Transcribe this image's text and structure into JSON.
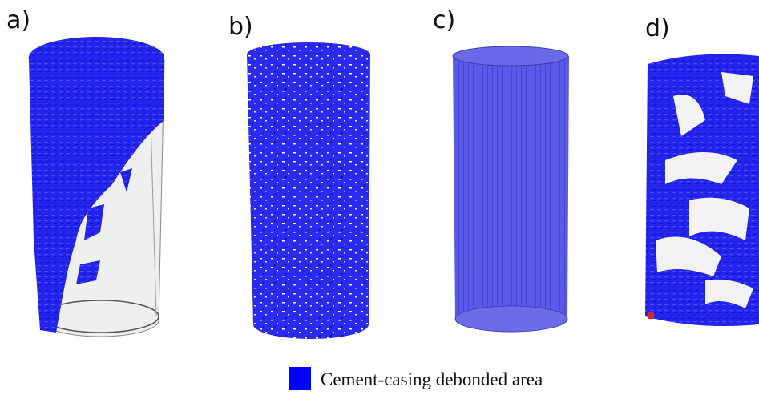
{
  "panels": [
    {
      "label": "a)"
    },
    {
      "label": "b)"
    },
    {
      "label": "c)"
    },
    {
      "label": "d)"
    }
  ],
  "legend": {
    "label": "Cement-casing debonded area"
  }
}
